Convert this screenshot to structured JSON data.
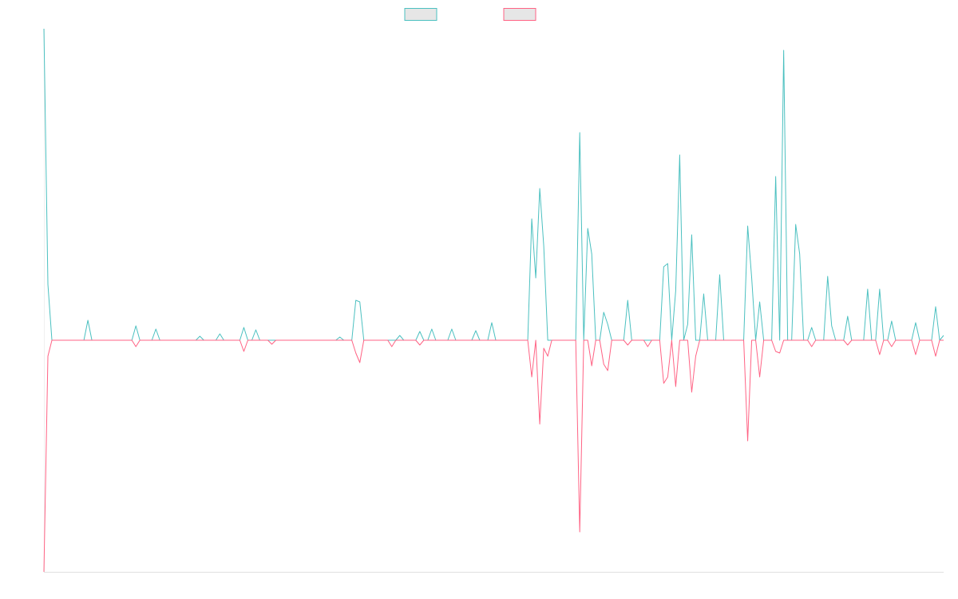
{
  "chart_data": {
    "type": "line",
    "legend": "top",
    "ylim": [
      -290,
      390
    ],
    "series": [
      {
        "color": "#4bc0c0",
        "values": [
          390,
          70,
          0,
          0,
          0,
          0,
          0,
          0,
          0,
          0,
          0,
          25,
          0,
          0,
          0,
          0,
          0,
          0,
          0,
          0,
          0,
          0,
          0,
          18,
          0,
          0,
          0,
          0,
          14,
          0,
          0,
          0,
          0,
          0,
          0,
          0,
          0,
          0,
          0,
          5,
          0,
          0,
          0,
          0,
          8,
          0,
          0,
          0,
          0,
          0,
          16,
          0,
          0,
          13,
          0,
          0,
          0,
          0,
          0,
          0,
          0,
          0,
          0,
          0,
          0,
          0,
          0,
          0,
          0,
          0,
          0,
          0,
          0,
          0,
          4,
          0,
          0,
          0,
          50,
          48,
          0,
          0,
          0,
          0,
          0,
          0,
          0,
          0,
          0,
          6,
          0,
          0,
          0,
          0,
          11,
          0,
          0,
          14,
          0,
          0,
          0,
          0,
          14,
          0,
          0,
          0,
          0,
          0,
          12,
          0,
          0,
          0,
          22,
          0,
          0,
          0,
          0,
          0,
          0,
          0,
          0,
          0,
          152,
          78,
          190,
          118,
          0,
          0,
          0,
          0,
          0,
          0,
          0,
          0,
          260,
          0,
          140,
          108,
          0,
          0,
          35,
          20,
          0,
          0,
          0,
          0,
          50,
          0,
          0,
          0,
          0,
          0,
          0,
          0,
          0,
          92,
          96,
          0,
          62,
          232,
          0,
          20,
          132,
          0,
          0,
          58,
          0,
          0,
          0,
          82,
          0,
          0,
          0,
          0,
          0,
          0,
          143,
          78,
          0,
          48,
          0,
          0,
          0,
          205,
          0,
          363,
          0,
          0,
          145,
          108,
          0,
          0,
          16,
          0,
          0,
          0,
          80,
          18,
          0,
          0,
          0,
          30,
          0,
          0,
          0,
          0,
          64,
          0,
          0,
          64,
          0,
          0,
          24,
          0,
          0,
          0,
          0,
          0,
          22,
          0,
          0,
          0,
          0,
          42,
          0,
          6
        ]
      },
      {
        "color": "#ff6384",
        "values": [
          -290,
          -20,
          0,
          0,
          0,
          0,
          0,
          0,
          0,
          0,
          0,
          0,
          0,
          0,
          0,
          0,
          0,
          0,
          0,
          0,
          0,
          0,
          0,
          -8,
          0,
          0,
          0,
          0,
          0,
          0,
          0,
          0,
          0,
          0,
          0,
          0,
          0,
          0,
          0,
          0,
          0,
          0,
          0,
          0,
          0,
          0,
          0,
          0,
          0,
          0,
          -14,
          0,
          0,
          0,
          0,
          0,
          0,
          -5,
          0,
          0,
          0,
          0,
          0,
          0,
          0,
          0,
          0,
          0,
          0,
          0,
          0,
          0,
          0,
          0,
          0,
          0,
          0,
          0,
          -16,
          -28,
          0,
          0,
          0,
          0,
          0,
          0,
          0,
          -8,
          0,
          0,
          0,
          0,
          0,
          0,
          -6,
          0,
          0,
          0,
          0,
          0,
          0,
          0,
          0,
          0,
          0,
          0,
          0,
          0,
          0,
          0,
          0,
          0,
          0,
          0,
          0,
          0,
          0,
          0,
          0,
          0,
          0,
          0,
          -46,
          0,
          -105,
          -10,
          -20,
          0,
          0,
          0,
          0,
          0,
          0,
          0,
          -240,
          0,
          0,
          -32,
          0,
          0,
          -30,
          -38,
          0,
          0,
          0,
          0,
          -6,
          0,
          0,
          0,
          0,
          -8,
          0,
          0,
          0,
          -54,
          -46,
          0,
          -58,
          0,
          0,
          0,
          -65,
          -20,
          0,
          0,
          0,
          0,
          0,
          0,
          0,
          0,
          0,
          0,
          0,
          0,
          -126,
          0,
          0,
          -46,
          0,
          0,
          0,
          -14,
          -16,
          0,
          0,
          0,
          0,
          0,
          0,
          0,
          -8,
          0,
          0,
          0,
          0,
          0,
          0,
          0,
          0,
          -6,
          0,
          0,
          0,
          0,
          0,
          0,
          0,
          -18,
          0,
          0,
          -8,
          0,
          0,
          0,
          0,
          0,
          -18,
          0,
          0,
          0,
          0,
          -20,
          0,
          0
        ]
      }
    ]
  }
}
